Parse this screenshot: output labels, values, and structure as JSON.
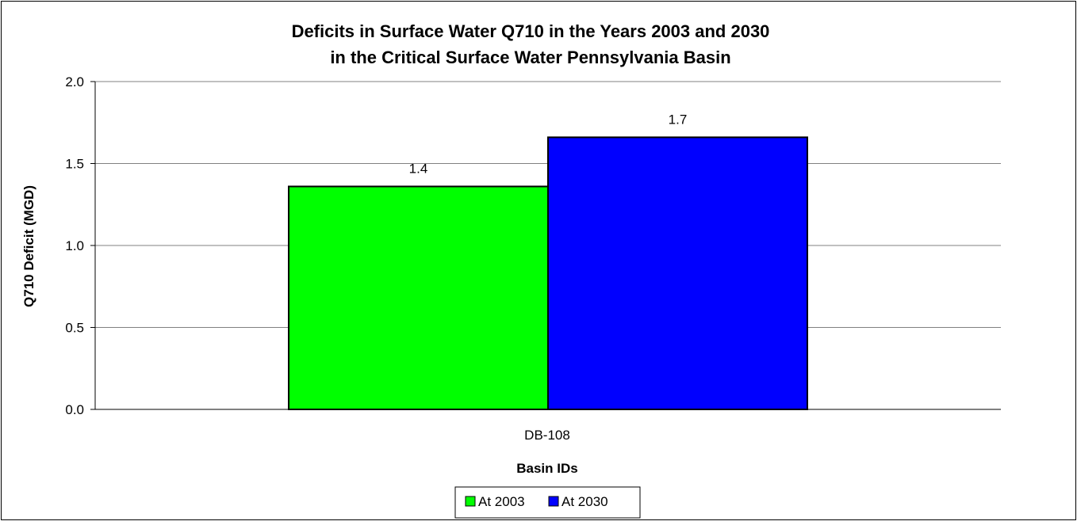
{
  "chart_data": {
    "type": "bar",
    "title_line1": "Deficits in Surface Water Q710 in the Years 2003 and 2030",
    "title_line2": "in the Critical Surface Water Pennsylvania Basin",
    "xlabel": "Basin IDs",
    "ylabel": "Q710 Deficit (MGD)",
    "categories": [
      "DB-108"
    ],
    "ylim": [
      0,
      2
    ],
    "y_ticks": [
      "0.0",
      "0.5",
      "1.0",
      "1.5",
      "2.0"
    ],
    "grid": true,
    "legend_position": "bottom",
    "series": [
      {
        "name": "At 2003",
        "values": [
          1.36
        ],
        "label": "1.4",
        "color": "#00ff00"
      },
      {
        "name": "At 2030",
        "values": [
          1.66
        ],
        "label": "1.7",
        "color": "#0000ff"
      }
    ]
  }
}
